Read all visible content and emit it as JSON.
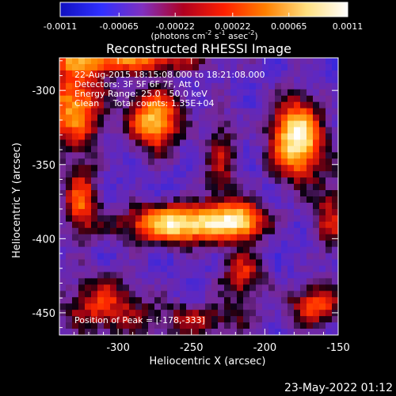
{
  "chart_data": {
    "type": "heatmap",
    "title": "Reconstructed RHESSI Image",
    "xlabel": "Heliocentric X (arcsec)",
    "ylabel": "Heliocentric Y (arcsec)",
    "xlim": [
      -340,
      -150
    ],
    "ylim": [
      -465,
      -278
    ],
    "xticks": [
      -300,
      -250,
      -200,
      -150
    ],
    "yticks": [
      -300,
      -350,
      -400,
      -450
    ],
    "colorbar": {
      "min": -0.0011,
      "max": 0.0011,
      "ticks": [
        "-0.0011",
        "-0.00065",
        "-0.00022",
        "0.00022",
        "0.00065",
        "0.0011"
      ],
      "units_parts": [
        "(photons cm",
        "-2",
        " s",
        "-1",
        " asec",
        "-2",
        ")"
      ],
      "colors": [
        "#1010c0",
        "#3030ff",
        "#8030c0",
        "#b00020",
        "#ff2000",
        "#ff8000",
        "#ffe080",
        "#ffffff"
      ]
    },
    "info_lines": [
      "22-Aug-2015 18:15:08.000 to 18:21:08.000",
      "Detectors: 3F 5F 6F 7F, Att 0",
      "Energy Range: 25.0 - 50.0 keV",
      "Clean     Total counts: 1.35E+04"
    ],
    "peak_label": "Position of Peak = [-178,-333]",
    "sources": [
      {
        "x": -178,
        "y": -333,
        "amp": 1.0,
        "sx": 12,
        "sy": 18
      },
      {
        "x": -255,
        "y": -390,
        "amp": 0.95,
        "sx": 28,
        "sy": 9
      },
      {
        "x": -275,
        "y": -320,
        "amp": 0.8,
        "sx": 12,
        "sy": 14
      },
      {
        "x": -330,
        "y": -310,
        "amp": 0.7,
        "sx": 14,
        "sy": 20
      },
      {
        "x": -325,
        "y": -375,
        "amp": 0.55,
        "sx": 8,
        "sy": 16
      },
      {
        "x": -215,
        "y": -387,
        "amp": 0.6,
        "sx": 10,
        "sy": 8
      },
      {
        "x": -300,
        "y": -280,
        "amp": 0.6,
        "sx": 40,
        "sy": 6
      },
      {
        "x": -215,
        "y": -425,
        "amp": 0.45,
        "sx": 10,
        "sy": 12
      },
      {
        "x": -165,
        "y": -445,
        "amp": 0.5,
        "sx": 14,
        "sy": 10
      },
      {
        "x": -310,
        "y": -445,
        "amp": 0.45,
        "sx": 20,
        "sy": 14
      },
      {
        "x": -245,
        "y": -455,
        "amp": 0.35,
        "sx": 24,
        "sy": 8
      },
      {
        "x": -230,
        "y": -348,
        "amp": 0.35,
        "sx": 8,
        "sy": 24
      },
      {
        "x": -155,
        "y": -385,
        "amp": 0.4,
        "sx": 8,
        "sy": 18
      }
    ]
  },
  "footer": {
    "timestamp": "23-May-2022 01:12"
  }
}
